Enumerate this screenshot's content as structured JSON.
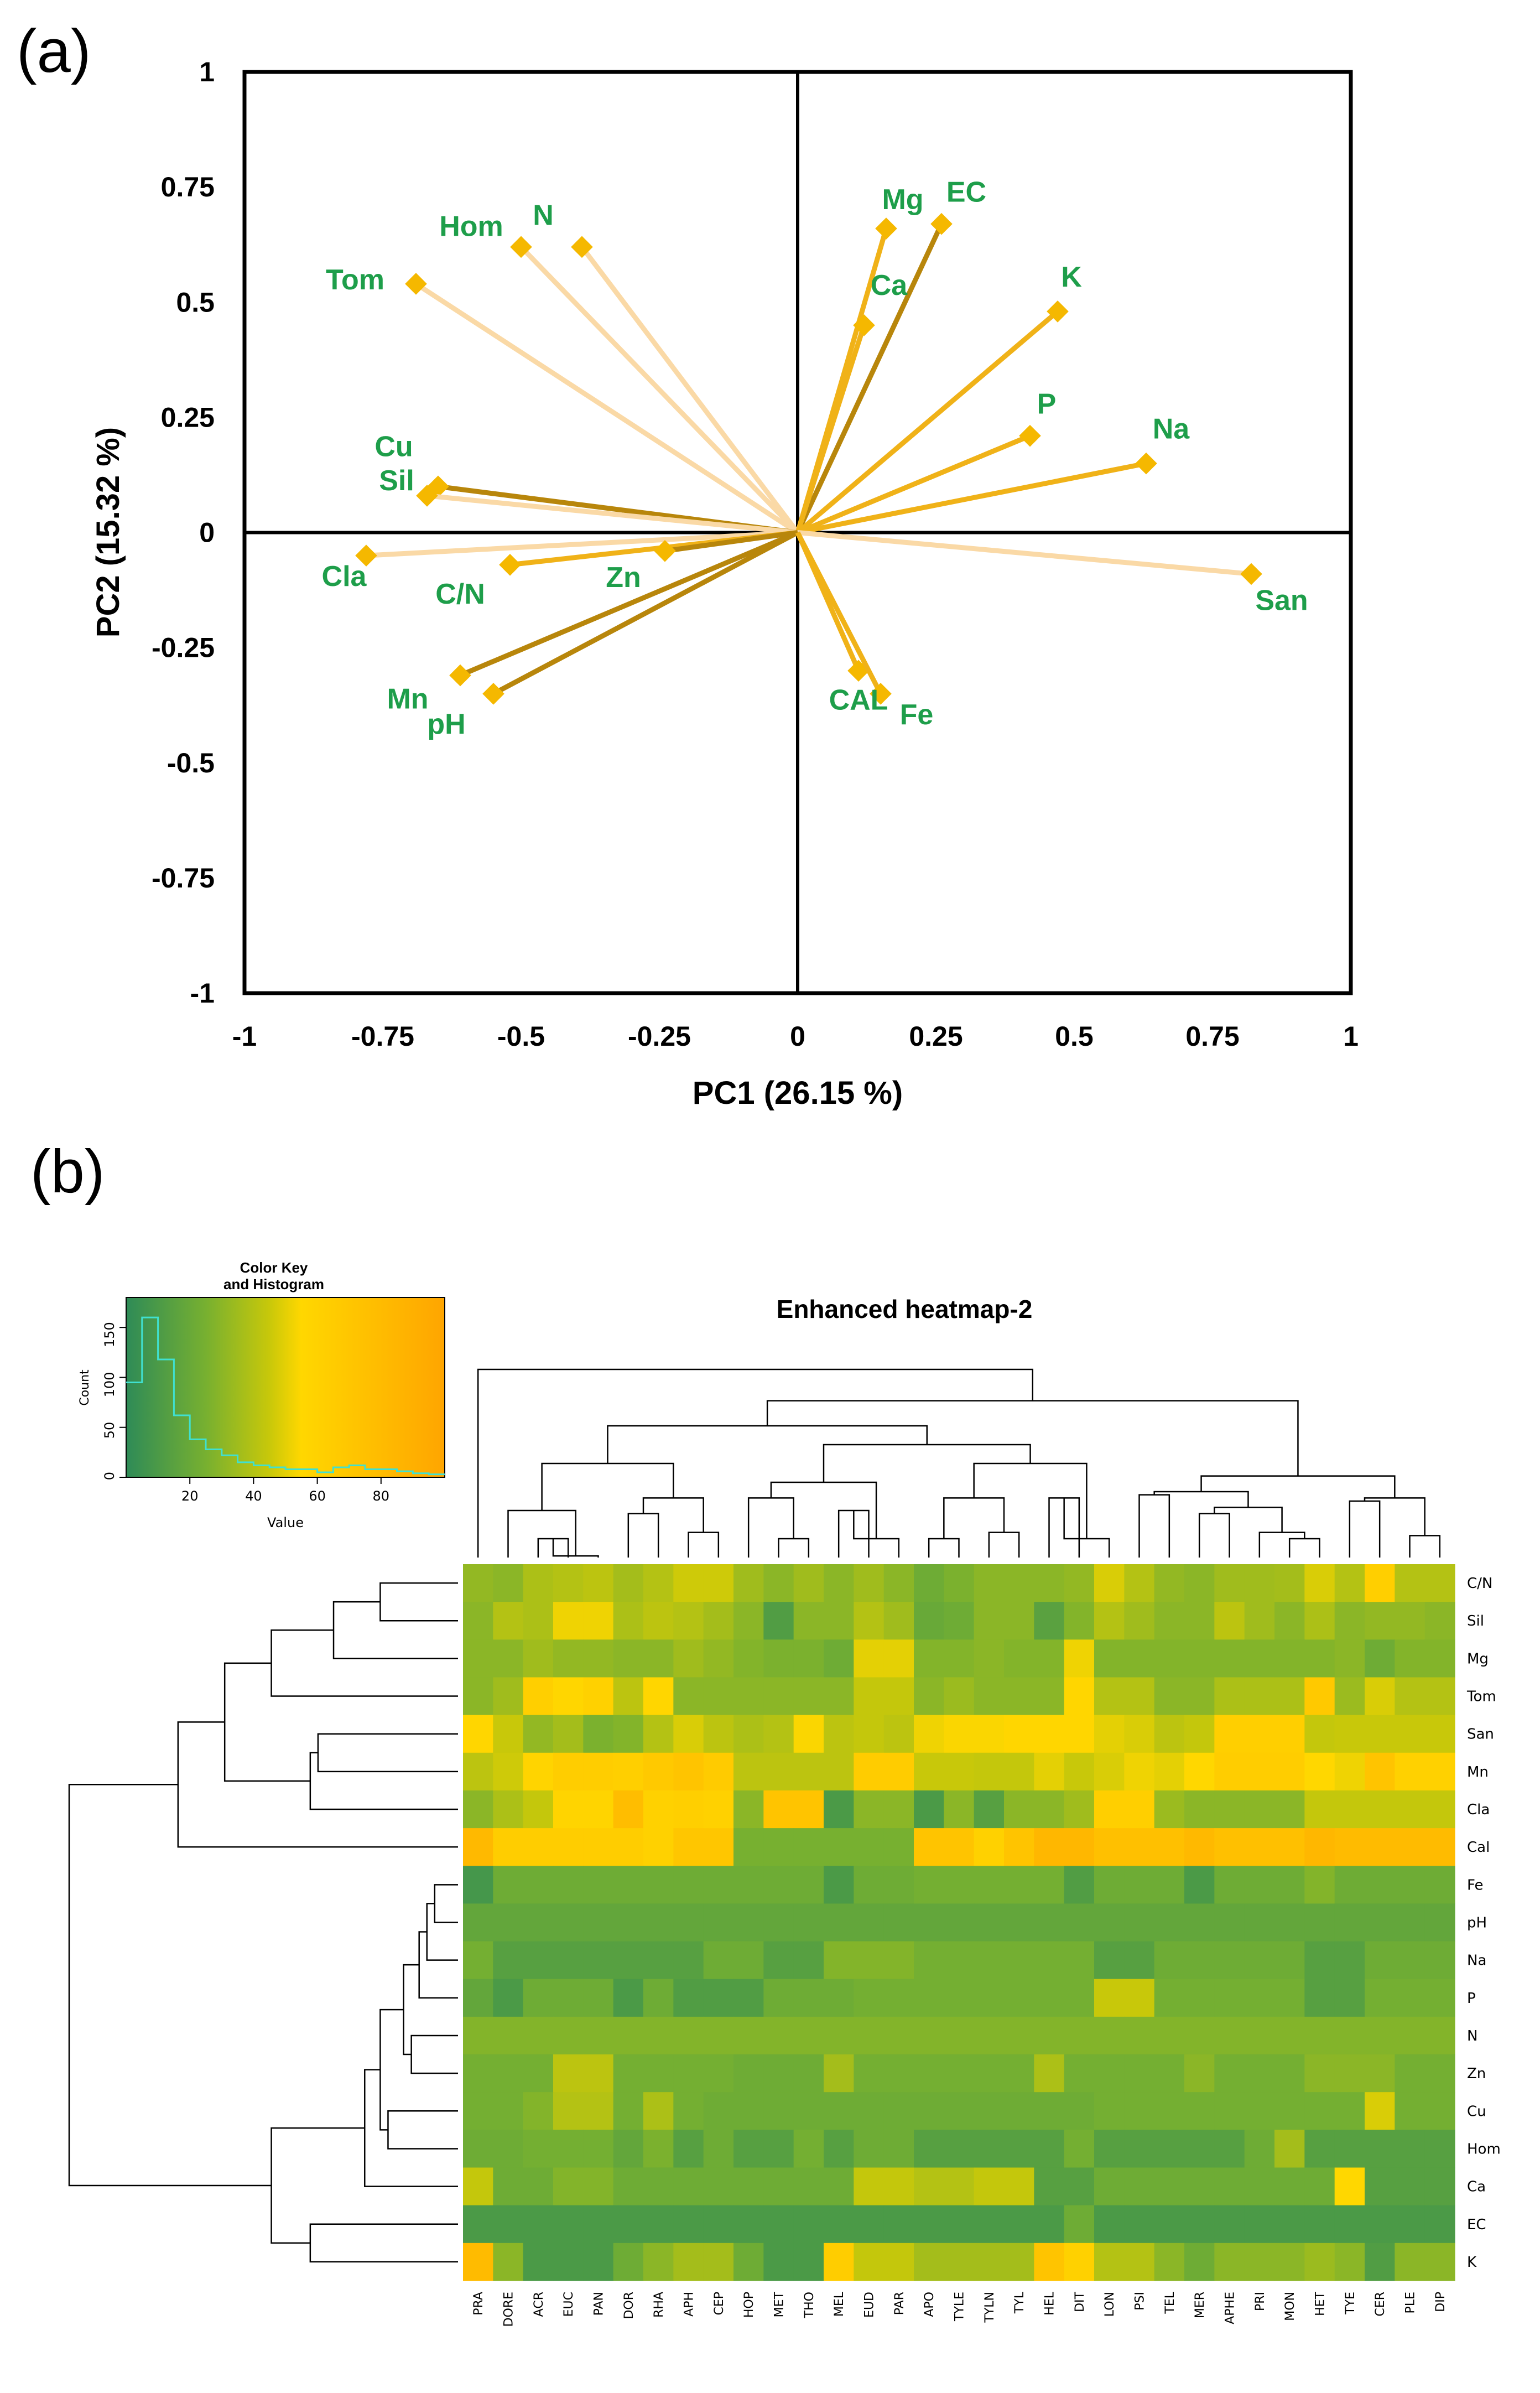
{
  "panels": {
    "a": "(a)",
    "b": "(b)"
  },
  "chart_data": [
    {
      "type": "biplot",
      "xlabel": "PC1 (26.15 %)",
      "ylabel": "PC2 (15.32 %)",
      "xlim": [
        -1,
        1
      ],
      "ylim": [
        -1,
        1
      ],
      "xticks": [
        "-1",
        "-0.75",
        "-0.5",
        "-0.25",
        "0",
        "0.25",
        "0.5",
        "0.75",
        "1"
      ],
      "yticks": [
        "1",
        "0.75",
        "0.5",
        "0.25",
        "0",
        "-0.25",
        "-0.5",
        "-0.75",
        "-1"
      ],
      "vectors": [
        {
          "name": "Tom",
          "x": -0.69,
          "y": 0.54,
          "shade": "light"
        },
        {
          "name": "Hom",
          "x": -0.5,
          "y": 0.62,
          "shade": "light"
        },
        {
          "name": "N",
          "x": -0.39,
          "y": 0.62,
          "shade": "light"
        },
        {
          "name": "Mg",
          "x": 0.16,
          "y": 0.66,
          "shade": "medium"
        },
        {
          "name": "EC",
          "x": 0.26,
          "y": 0.67,
          "shade": "dark"
        },
        {
          "name": "Ca",
          "x": 0.12,
          "y": 0.45,
          "shade": "medium"
        },
        {
          "name": "K",
          "x": 0.47,
          "y": 0.48,
          "shade": "medium"
        },
        {
          "name": "P",
          "x": 0.42,
          "y": 0.21,
          "shade": "medium"
        },
        {
          "name": "Na",
          "x": 0.63,
          "y": 0.15,
          "shade": "medium"
        },
        {
          "name": "Cu",
          "x": -0.65,
          "y": 0.1,
          "shade": "dark"
        },
        {
          "name": "Sil",
          "x": -0.67,
          "y": 0.08,
          "shade": "light"
        },
        {
          "name": "Cla",
          "x": -0.78,
          "y": -0.05,
          "shade": "light"
        },
        {
          "name": "C/N",
          "x": -0.52,
          "y": -0.07,
          "shade": "medium"
        },
        {
          "name": "Zn",
          "x": -0.24,
          "y": -0.04,
          "shade": "dark"
        },
        {
          "name": "San",
          "x": 0.82,
          "y": -0.09,
          "shade": "light"
        },
        {
          "name": "Mn",
          "x": -0.61,
          "y": -0.31,
          "shade": "dark"
        },
        {
          "name": "pH",
          "x": -0.55,
          "y": -0.35,
          "shade": "dark"
        },
        {
          "name": "CAL",
          "x": 0.11,
          "y": -0.3,
          "shade": "medium"
        },
        {
          "name": "Fe",
          "x": 0.15,
          "y": -0.35,
          "shade": "medium"
        }
      ]
    },
    {
      "type": "heatmap",
      "title": "Enhanced heatmap-2",
      "color_key": {
        "title_lines": [
          "Color Key",
          "and Histogram"
        ],
        "xlabel": "Value",
        "ylabel": "Count",
        "xticks": [
          "20",
          "40",
          "60",
          "80"
        ],
        "yticks": [
          "0",
          "50",
          "100",
          "150"
        ],
        "histogram_counts": [
          95,
          160,
          118,
          62,
          38,
          28,
          22,
          15,
          12,
          10,
          8,
          8,
          5,
          10,
          12,
          8,
          8,
          6,
          4,
          3
        ],
        "value_range": [
          0,
          100
        ]
      },
      "rows": [
        "C/N",
        "Sil",
        "Mg",
        "Tom",
        "San",
        "Mn",
        "Cla",
        "Cal",
        "Fe",
        "pH",
        "Na",
        "P",
        "N",
        "Zn",
        "Cu",
        "Hom",
        "Ca",
        "EC",
        "K"
      ],
      "columns": [
        "PRA",
        "DORE",
        "ACR",
        "EUC",
        "PAN",
        "DOR",
        "RHA",
        "APH",
        "CEP",
        "HOP",
        "MET",
        "THO",
        "MEL",
        "EUD",
        "PAR",
        "APO",
        "TYLE",
        "TYLN",
        "TYL",
        "HEL",
        "DIT",
        "LON",
        "PSI",
        "TEL",
        "MER",
        "APHE",
        "PRI",
        "MON",
        "HET",
        "TYE",
        "CER",
        "PLE",
        "DIP"
      ],
      "values": [
        [
          32,
          30,
          38,
          40,
          42,
          36,
          40,
          46,
          46,
          35,
          30,
          35,
          30,
          35,
          30,
          22,
          26,
          30,
          30,
          30,
          32,
          48,
          40,
          32,
          30,
          35,
          35,
          36,
          48,
          40,
          62,
          40,
          40
        ],
        [
          30,
          40,
          38,
          52,
          52,
          38,
          42,
          40,
          36,
          30,
          12,
          30,
          30,
          40,
          35,
          20,
          22,
          30,
          30,
          15,
          28,
          40,
          35,
          30,
          30,
          42,
          35,
          30,
          38,
          30,
          32,
          32,
          30
        ],
        [
          30,
          30,
          35,
          32,
          32,
          30,
          30,
          35,
          32,
          28,
          26,
          26,
          22,
          50,
          50,
          28,
          28,
          30,
          28,
          28,
          52,
          28,
          28,
          28,
          28,
          28,
          28,
          28,
          28,
          30,
          22,
          28,
          28
        ],
        [
          30,
          35,
          62,
          56,
          60,
          42,
          56,
          30,
          30,
          30,
          30,
          30,
          30,
          44,
          44,
          30,
          34,
          30,
          30,
          30,
          56,
          40,
          40,
          30,
          30,
          38,
          38,
          38,
          68,
          34,
          48,
          40,
          40
        ],
        [
          56,
          45,
          32,
          36,
          26,
          28,
          40,
          48,
          42,
          38,
          40,
          54,
          42,
          44,
          42,
          52,
          54,
          54,
          56,
          56,
          56,
          50,
          48,
          42,
          44,
          62,
          62,
          62,
          44,
          45,
          45,
          45,
          45
        ],
        [
          42,
          46,
          58,
          64,
          64,
          62,
          68,
          72,
          66,
          42,
          42,
          42,
          42,
          65,
          65,
          45,
          45,
          44,
          44,
          50,
          45,
          48,
          52,
          50,
          55,
          64,
          64,
          64,
          55,
          52,
          72,
          60,
          60
        ],
        [
          30,
          38,
          44,
          58,
          58,
          78,
          60,
          62,
          60,
          30,
          72,
          72,
          10,
          30,
          30,
          10,
          30,
          14,
          30,
          30,
          35,
          62,
          62,
          34,
          30,
          30,
          30,
          30,
          44,
          44,
          44,
          44,
          44
        ],
        [
          82,
          64,
          64,
          64,
          64,
          64,
          60,
          70,
          70,
          25,
          25,
          25,
          25,
          25,
          25,
          72,
          72,
          60,
          72,
          84,
          84,
          76,
          76,
          76,
          82,
          76,
          76,
          76,
          84,
          80,
          80,
          80,
          80
        ],
        [
          8,
          22,
          22,
          22,
          22,
          22,
          22,
          22,
          22,
          22,
          22,
          22,
          10,
          22,
          22,
          24,
          24,
          24,
          24,
          24,
          12,
          22,
          22,
          22,
          10,
          22,
          22,
          22,
          28,
          22,
          22,
          22,
          22
        ],
        [
          18,
          18,
          18,
          18,
          18,
          18,
          18,
          18,
          18,
          18,
          18,
          18,
          18,
          18,
          18,
          18,
          18,
          18,
          18,
          18,
          18,
          18,
          18,
          18,
          18,
          18,
          18,
          18,
          18,
          18,
          18,
          18,
          18
        ],
        [
          24,
          14,
          14,
          14,
          14,
          14,
          14,
          14,
          22,
          22,
          14,
          14,
          28,
          28,
          28,
          24,
          24,
          24,
          24,
          24,
          24,
          14,
          14,
          22,
          22,
          22,
          22,
          22,
          14,
          14,
          22,
          22,
          22
        ],
        [
          18,
          10,
          22,
          22,
          22,
          10,
          22,
          12,
          12,
          12,
          22,
          22,
          22,
          24,
          24,
          24,
          24,
          24,
          24,
          24,
          24,
          45,
          45,
          24,
          24,
          24,
          24,
          24,
          14,
          14,
          24,
          24,
          24
        ],
        [
          28,
          28,
          28,
          28,
          28,
          28,
          28,
          28,
          28,
          28,
          28,
          28,
          28,
          28,
          28,
          28,
          28,
          28,
          28,
          28,
          28,
          28,
          28,
          28,
          28,
          28,
          28,
          28,
          28,
          28,
          28,
          28,
          28
        ],
        [
          24,
          24,
          24,
          42,
          42,
          24,
          24,
          24,
          24,
          22,
          22,
          22,
          36,
          24,
          24,
          24,
          24,
          24,
          24,
          38,
          24,
          24,
          24,
          24,
          30,
          24,
          24,
          24,
          30,
          30,
          30,
          24,
          24
        ],
        [
          24,
          24,
          28,
          40,
          40,
          24,
          38,
          24,
          22,
          22,
          22,
          22,
          22,
          22,
          22,
          22,
          22,
          22,
          22,
          22,
          22,
          24,
          24,
          24,
          24,
          24,
          24,
          24,
          24,
          24,
          48,
          24,
          24
        ],
        [
          22,
          22,
          24,
          24,
          24,
          18,
          26,
          14,
          22,
          14,
          14,
          24,
          14,
          22,
          22,
          14,
          14,
          14,
          14,
          14,
          24,
          14,
          14,
          14,
          14,
          14,
          22,
          36,
          14,
          14,
          14,
          14,
          14
        ],
        [
          44,
          22,
          22,
          28,
          28,
          22,
          22,
          22,
          22,
          22,
          22,
          22,
          22,
          44,
          44,
          40,
          40,
          44,
          44,
          14,
          14,
          22,
          22,
          22,
          22,
          22,
          22,
          22,
          22,
          55,
          14,
          14,
          14
        ],
        [
          10,
          10,
          10,
          10,
          10,
          10,
          10,
          10,
          10,
          10,
          10,
          10,
          10,
          10,
          10,
          10,
          10,
          10,
          10,
          10,
          22,
          10,
          10,
          10,
          10,
          10,
          10,
          10,
          10,
          10,
          10,
          10,
          10
        ],
        [
          80,
          30,
          10,
          10,
          10,
          22,
          30,
          36,
          36,
          22,
          10,
          10,
          64,
          44,
          44,
          36,
          36,
          36,
          36,
          72,
          60,
          40,
          40,
          30,
          22,
          30,
          30,
          30,
          34,
          30,
          12,
          30,
          30
        ]
      ]
    }
  ]
}
